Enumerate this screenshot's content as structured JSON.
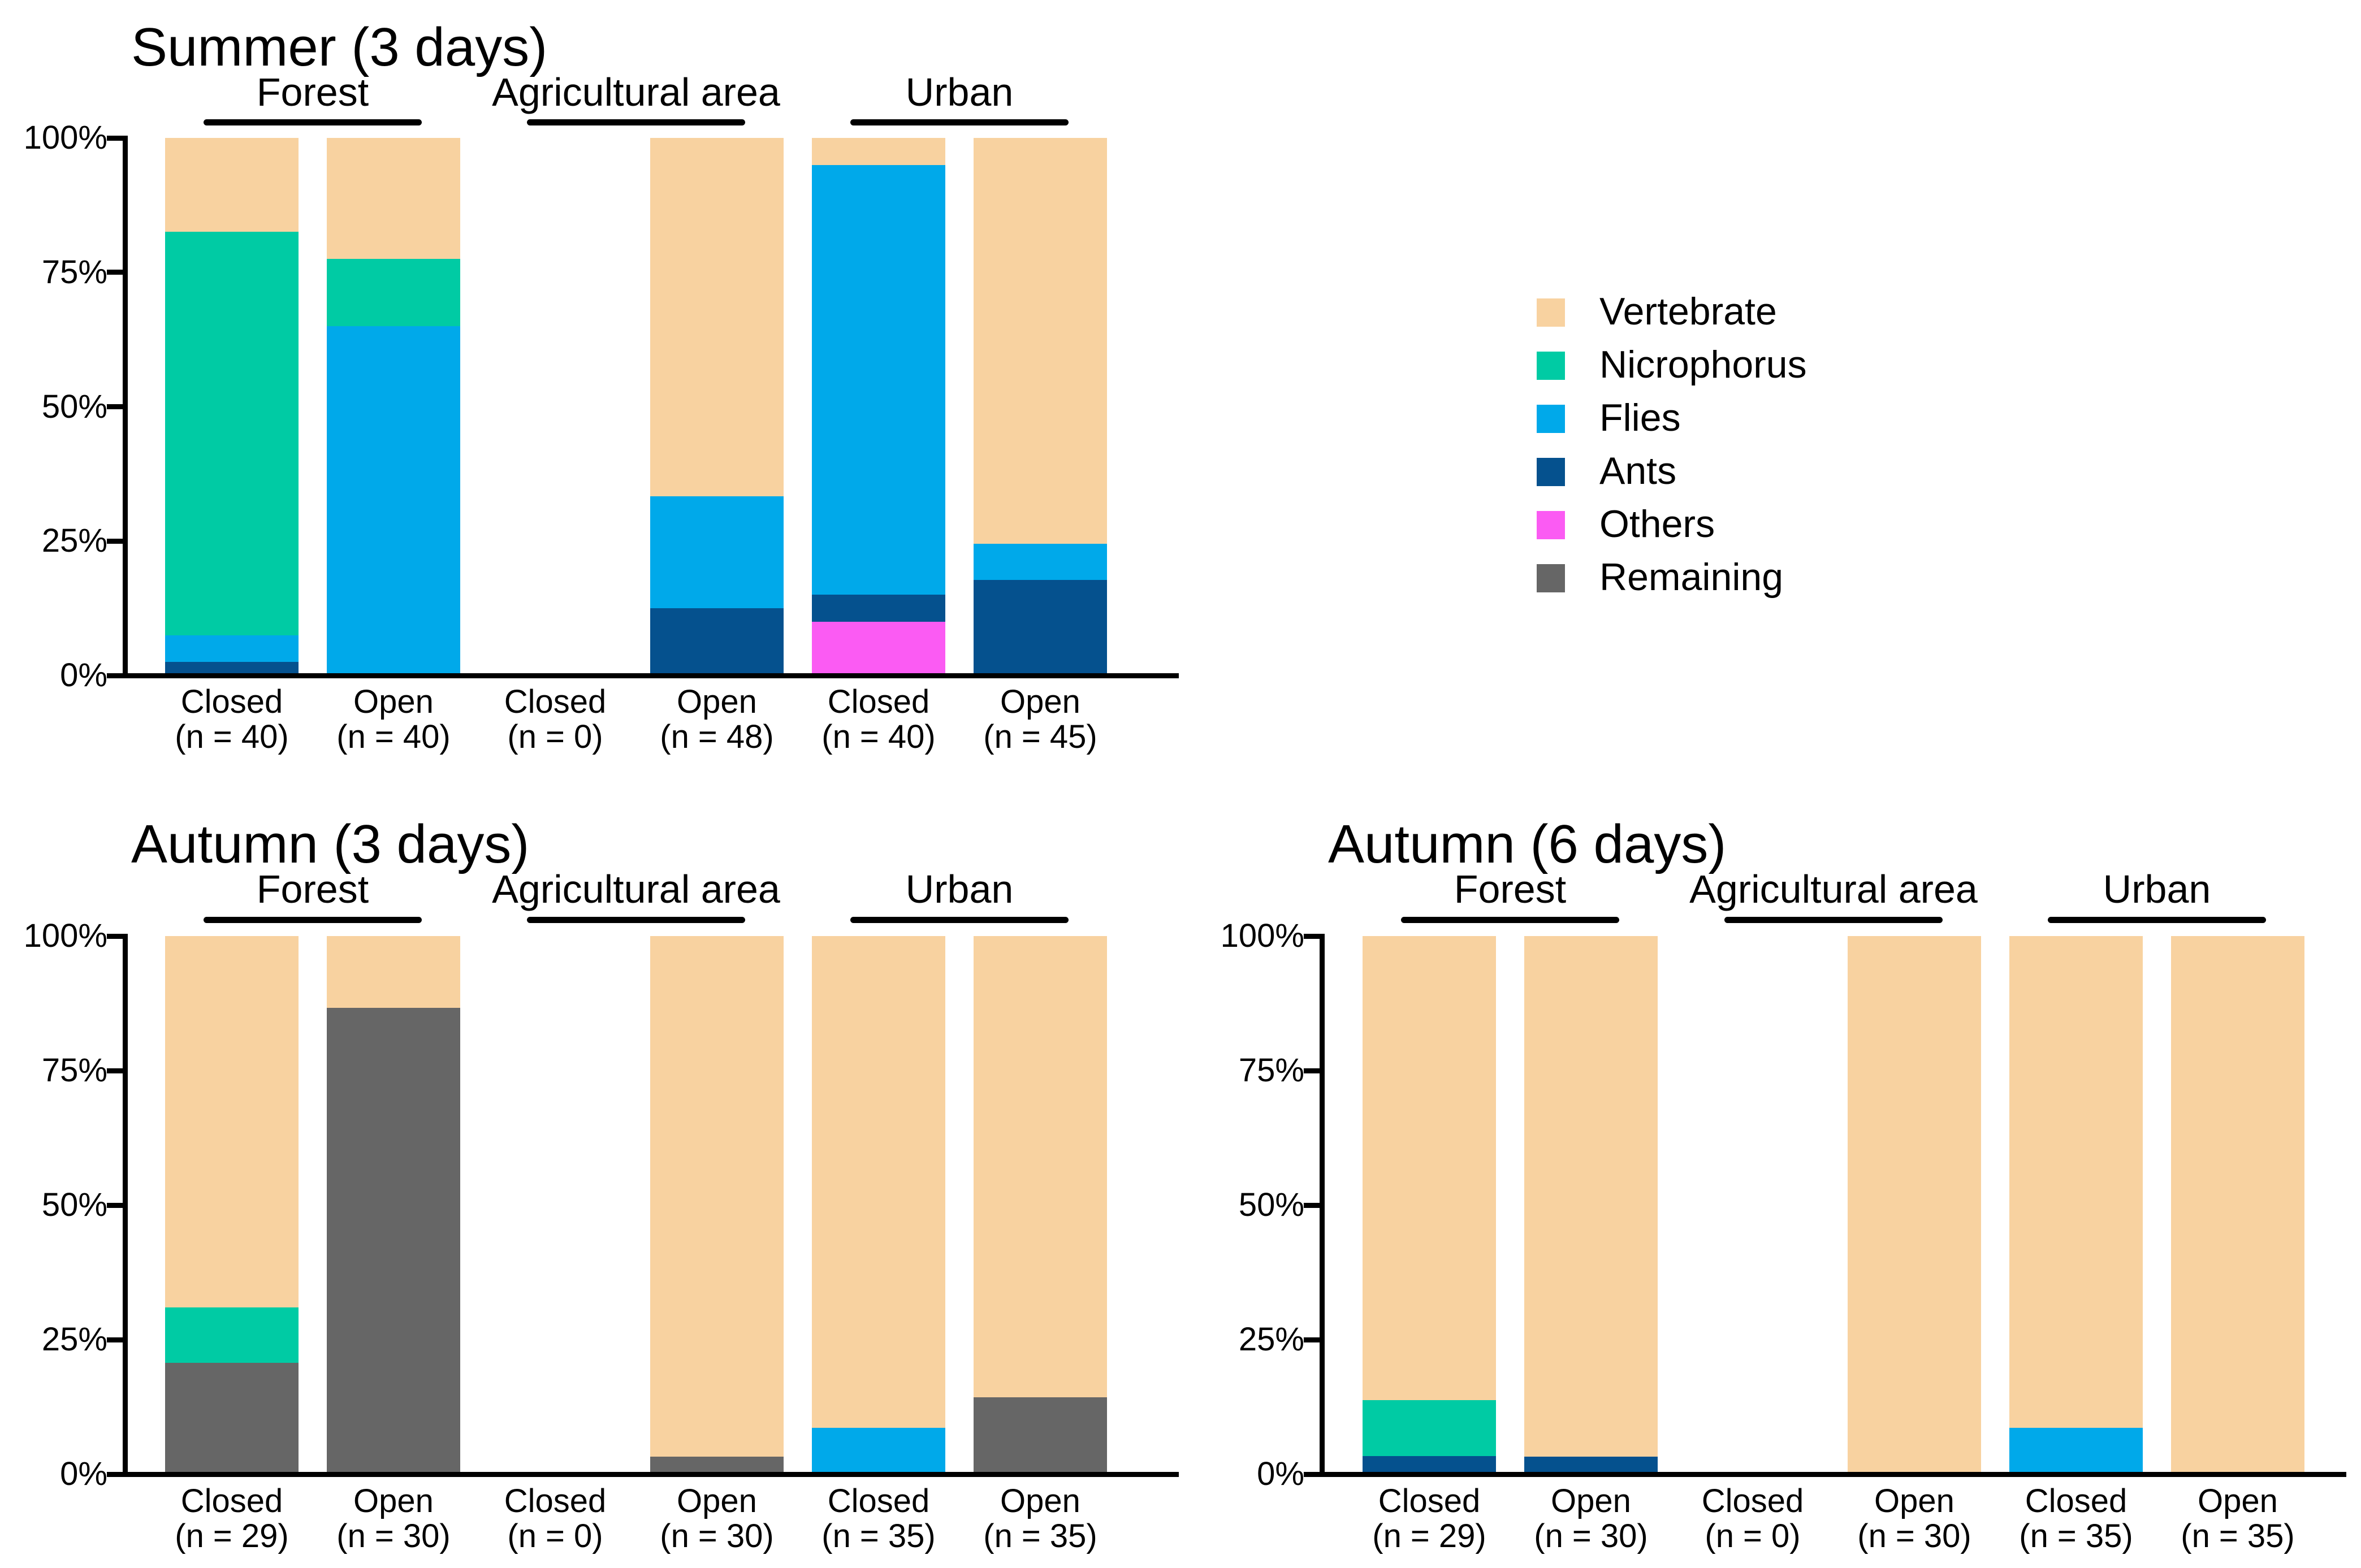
{
  "figure": {
    "background": "#FFFFFF"
  },
  "colors": {
    "Vertebrate": "#F8D2A0",
    "Nicrophorus": "#00CBA4",
    "Flies": "#00A9EA",
    "Ants": "#05518E",
    "Others": "#FB5BF3",
    "Remaining": "#666666",
    "axis": "#000000",
    "text": "#000000"
  },
  "y_axis": {
    "tick_labels": [
      "0%",
      "25%",
      "50%",
      "75%",
      "100%"
    ],
    "tick_values": [
      0,
      25,
      50,
      75,
      100
    ]
  },
  "legend": {
    "items": [
      {
        "label": "Vertebrate",
        "key": "Vertebrate"
      },
      {
        "label": "Nicrophorus",
        "key": "Nicrophorus"
      },
      {
        "label": "Flies",
        "key": "Flies"
      },
      {
        "label": "Ants",
        "key": "Ants"
      },
      {
        "label": "Others",
        "key": "Others"
      },
      {
        "label": "Remaining",
        "key": "Remaining"
      }
    ]
  },
  "chart_data": {
    "type": "bar",
    "stacked": true,
    "unit": "percent",
    "ylim": [
      0,
      100
    ],
    "stack_order_bottom_to_top": [
      "Remaining",
      "Others",
      "Ants",
      "Flies",
      "Nicrophorus",
      "Vertebrate"
    ],
    "panels": [
      {
        "title": "Summer (3 days)",
        "groups": [
          "Forest",
          "Agricultural area",
          "Urban"
        ],
        "bars": [
          {
            "group": "Forest",
            "label": "Closed",
            "n_label": "(n = 40)",
            "n": 40,
            "segments": [
              [
                "Ants",
                2.5
              ],
              [
                "Flies",
                5.0
              ],
              [
                "Nicrophorus",
                75.0
              ],
              [
                "Vertebrate",
                17.5
              ]
            ]
          },
          {
            "group": "Forest",
            "label": "Open",
            "n_label": "(n = 40)",
            "n": 40,
            "segments": [
              [
                "Flies",
                65.0
              ],
              [
                "Nicrophorus",
                12.5
              ],
              [
                "Vertebrate",
                22.5
              ]
            ]
          },
          {
            "group": "Agricultural area",
            "label": "Closed",
            "n_label": "(n = 0)",
            "n": 0,
            "segments": []
          },
          {
            "group": "Agricultural area",
            "label": "Open",
            "n_label": "(n = 48)",
            "n": 48,
            "segments": [
              [
                "Ants",
                12.5
              ],
              [
                "Flies",
                20.8
              ],
              [
                "Vertebrate",
                66.7
              ]
            ]
          },
          {
            "group": "Urban",
            "label": "Closed",
            "n_label": "(n = 40)",
            "n": 40,
            "segments": [
              [
                "Others",
                10.0
              ],
              [
                "Ants",
                5.0
              ],
              [
                "Flies",
                80.0
              ],
              [
                "Vertebrate",
                5.0
              ]
            ]
          },
          {
            "group": "Urban",
            "label": "Open",
            "n_label": "(n = 45)",
            "n": 45,
            "segments": [
              [
                "Ants",
                17.8
              ],
              [
                "Flies",
                6.7
              ],
              [
                "Vertebrate",
                75.5
              ]
            ]
          }
        ]
      },
      {
        "title": "Autumn (3 days)",
        "groups": [
          "Forest",
          "Agricultural area",
          "Urban"
        ],
        "bars": [
          {
            "group": "Forest",
            "label": "Closed",
            "n_label": "(n = 29)",
            "n": 29,
            "segments": [
              [
                "Remaining",
                20.7
              ],
              [
                "Nicrophorus",
                10.3
              ],
              [
                "Vertebrate",
                69.0
              ]
            ]
          },
          {
            "group": "Forest",
            "label": "Open",
            "n_label": "(n = 30)",
            "n": 30,
            "segments": [
              [
                "Remaining",
                86.7
              ],
              [
                "Vertebrate",
                13.3
              ]
            ]
          },
          {
            "group": "Agricultural area",
            "label": "Closed",
            "n_label": "(n = 0)",
            "n": 0,
            "segments": []
          },
          {
            "group": "Agricultural area",
            "label": "Open",
            "n_label": "(n = 30)",
            "n": 30,
            "segments": [
              [
                "Remaining",
                3.3
              ],
              [
                "Vertebrate",
                96.7
              ]
            ]
          },
          {
            "group": "Urban",
            "label": "Closed",
            "n_label": "(n = 35)",
            "n": 35,
            "segments": [
              [
                "Flies",
                8.6
              ],
              [
                "Vertebrate",
                91.4
              ]
            ]
          },
          {
            "group": "Urban",
            "label": "Open",
            "n_label": "(n = 35)",
            "n": 35,
            "segments": [
              [
                "Remaining",
                14.3
              ],
              [
                "Vertebrate",
                85.7
              ]
            ]
          }
        ]
      },
      {
        "title": "Autumn (6 days)",
        "groups": [
          "Forest",
          "Agricultural area",
          "Urban"
        ],
        "bars": [
          {
            "group": "Forest",
            "label": "Closed",
            "n_label": "(n = 29)",
            "n": 29,
            "segments": [
              [
                "Ants",
                3.4
              ],
              [
                "Nicrophorus",
                10.4
              ],
              [
                "Vertebrate",
                86.2
              ]
            ]
          },
          {
            "group": "Forest",
            "label": "Open",
            "n_label": "(n = 30)",
            "n": 30,
            "segments": [
              [
                "Ants",
                3.3
              ],
              [
                "Vertebrate",
                96.7
              ]
            ]
          },
          {
            "group": "Agricultural area",
            "label": "Closed",
            "n_label": "(n = 0)",
            "n": 0,
            "segments": []
          },
          {
            "group": "Agricultural area",
            "label": "Open",
            "n_label": "(n = 30)",
            "n": 30,
            "segments": [
              [
                "Vertebrate",
                100.0
              ]
            ]
          },
          {
            "group": "Urban",
            "label": "Closed",
            "n_label": "(n = 35)",
            "n": 35,
            "segments": [
              [
                "Flies",
                8.6
              ],
              [
                "Vertebrate",
                91.4
              ]
            ]
          },
          {
            "group": "Urban",
            "label": "Open",
            "n_label": "(n = 35)",
            "n": 35,
            "segments": [
              [
                "Vertebrate",
                100.0
              ]
            ]
          }
        ]
      }
    ]
  }
}
